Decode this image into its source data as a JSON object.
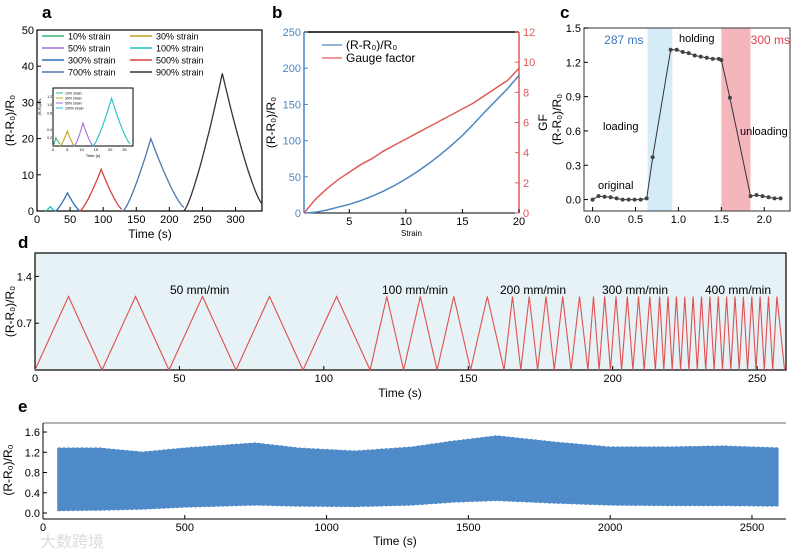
{
  "watermark": "大数跨境",
  "chart_data": [
    {
      "panel": "a",
      "type": "line",
      "xlabel": "Time (s)",
      "ylabel": "(R-R₀)/R₀",
      "xlim": [
        0,
        340
      ],
      "ylim": [
        0,
        50
      ],
      "xticks": [
        "0",
        "50",
        "100",
        "150",
        "200",
        "250",
        "300"
      ],
      "yticks": [
        "0",
        "10",
        "20",
        "30",
        "40",
        "50"
      ],
      "series": [
        {
          "name": "10% strain",
          "color": "#3cb371",
          "start": 0,
          "peak_t": 10,
          "end": 15,
          "peak": 0.3,
          "end_val": 0
        },
        {
          "name": "30% strain",
          "color": "#c9a020",
          "start": 3,
          "peak_t": 9,
          "end": 14,
          "peak": 0.5,
          "end_val": 0
        },
        {
          "name": "50% strain",
          "color": "#a86fd6",
          "start": 5,
          "peak_t": 10,
          "end": 15,
          "peak": 0.6,
          "end_val": 0
        },
        {
          "name": "100% strain",
          "color": "#20c0c0",
          "start": 13,
          "peak_t": 20,
          "end": 28,
          "peak": 1.2,
          "end_val": 0
        },
        {
          "name": "300% strain",
          "color": "#2f6db3",
          "start": 28,
          "peak_t": 46,
          "end": 65,
          "peak": 5,
          "end_val": 0
        },
        {
          "name": "500% strain",
          "color": "#d94040",
          "start": 65,
          "peak_t": 97,
          "end": 128,
          "peak": 11.5,
          "end_val": 0.5
        },
        {
          "name": "700% strain",
          "color": "#4a78a8",
          "start": 130,
          "peak_t": 172,
          "end": 222,
          "peak": 20,
          "end_val": 1
        },
        {
          "name": "900% strain",
          "color": "#333333",
          "start": 222,
          "peak_t": 280,
          "end": 340,
          "peak": 38,
          "end_val": 2
        }
      ],
      "inset": {
        "xlabel": "Time (s)",
        "ylabel": "(R-R₀)/R₀",
        "xlim": [
          0,
          28
        ],
        "ylim": [
          0,
          1.4
        ],
        "xticks": [
          "0",
          "5",
          "10",
          "15",
          "20",
          "25"
        ],
        "yticks": [
          "0.2",
          "0.4",
          "0.8",
          "1.0",
          "1.2"
        ],
        "series": [
          {
            "name": "10% strain",
            "color": "#3cb371",
            "start": 0,
            "peak_t": 1,
            "end": 2.5,
            "peak": 0.2,
            "end_val": 0.05
          },
          {
            "name": "30% strain",
            "color": "#c9a020",
            "start": 2.5,
            "peak_t": 5,
            "end": 7.5,
            "peak": 0.36,
            "end_val": 0
          },
          {
            "name": "50% strain",
            "color": "#a86fd6",
            "start": 7.5,
            "peak_t": 10.5,
            "end": 14,
            "peak": 0.55,
            "end_val": 0
          },
          {
            "name": "100% strain",
            "color": "#20c0c0",
            "start": 14,
            "peak_t": 20.5,
            "end": 27,
            "peak": 1.15,
            "end_val": 0.05
          }
        ]
      }
    },
    {
      "panel": "b",
      "type": "line",
      "xlabel": "Strain",
      "ylabel": "(R-R₀)/R₀",
      "ylabel_right": "GF",
      "xlim": [
        1,
        20
      ],
      "ylim": [
        0,
        250
      ],
      "ylim_right": [
        0,
        12
      ],
      "xticks": [
        "5",
        "10",
        "15",
        "20"
      ],
      "yticks": [
        "0",
        "50",
        "100",
        "150",
        "200",
        "250"
      ],
      "yticks_right": [
        "0",
        "2",
        "4",
        "6",
        "8",
        "10",
        "12"
      ],
      "left_color": "#4a86c0",
      "right_color": "#e05a5a",
      "series": [
        {
          "name": "(R-R₀)/R₀",
          "axis": "left",
          "color": "#4a86c0",
          "x": [
            1,
            2,
            3,
            4,
            5,
            6,
            7,
            8,
            9,
            10,
            11,
            12,
            13,
            14,
            15,
            16,
            17,
            18,
            19,
            20
          ],
          "y": [
            0,
            1,
            4,
            8,
            12,
            17,
            23,
            30,
            38,
            47,
            57,
            68,
            80,
            93,
            107,
            123,
            140,
            156,
            172,
            190
          ]
        },
        {
          "name": "Gauge factor",
          "axis": "right",
          "color": "#e05a5a",
          "x": [
            1,
            2,
            3,
            4,
            5,
            6,
            7,
            8,
            9,
            10,
            11,
            12,
            13,
            14,
            15,
            16,
            17,
            18,
            19,
            20
          ],
          "y": [
            0,
            0.9,
            1.6,
            2.2,
            2.7,
            3.2,
            3.6,
            4.1,
            4.5,
            4.9,
            5.3,
            5.7,
            6.1,
            6.5,
            6.9,
            7.3,
            7.8,
            8.3,
            8.8,
            9.6
          ]
        }
      ]
    },
    {
      "panel": "c",
      "type": "line",
      "ylabel": "(R-R₀)/R₀",
      "xlim": [
        -0.1,
        2.3
      ],
      "ylim": [
        -0.1,
        1.5
      ],
      "xticks": [
        "0.0",
        "0.5",
        "1.0",
        "1.5",
        "2.0"
      ],
      "yticks": [
        "0.0",
        "0.3",
        "0.6",
        "0.9",
        "1.2",
        "1.5"
      ],
      "bands": [
        {
          "from": 0.64,
          "to": 0.93,
          "color": "#d3ecf8",
          "label": "287 ms",
          "label_color": "#3a78b8"
        },
        {
          "from": 1.5,
          "to": 1.84,
          "color": "#f5b5bd",
          "label": "300 ms",
          "label_color": "#e04050"
        }
      ],
      "annotations": [
        "original",
        "loading",
        "holding",
        "unloading"
      ],
      "x": [
        0,
        0.07,
        0.14,
        0.21,
        0.28,
        0.35,
        0.42,
        0.49,
        0.56,
        0.63,
        0.7,
        0.91,
        0.98,
        1.05,
        1.12,
        1.19,
        1.26,
        1.33,
        1.4,
        1.47,
        1.5,
        1.6,
        1.84,
        1.91,
        1.98,
        2.05,
        2.12,
        2.19
      ],
      "y": [
        0,
        0.03,
        0.025,
        0.02,
        0.01,
        0,
        0,
        0,
        0,
        0.01,
        0.37,
        1.31,
        1.31,
        1.29,
        1.28,
        1.26,
        1.25,
        1.24,
        1.23,
        1.23,
        1.22,
        0.89,
        0.03,
        0.04,
        0.03,
        0.02,
        0.01,
        0.01
      ]
    },
    {
      "panel": "d",
      "type": "line",
      "xlabel": "Time (s)",
      "ylabel": "(R-R₀)/R₀",
      "xlim": [
        0,
        260
      ],
      "ylim": [
        0,
        1.75
      ],
      "xticks": [
        "0",
        "50",
        "100",
        "150",
        "200",
        "250"
      ],
      "yticks": [
        "0.7",
        "1.4"
      ],
      "color": "#e05050",
      "peak": 1.1,
      "segments": [
        {
          "label": "50 mm/min",
          "start": 0,
          "period": 23.2,
          "cycles": 5
        },
        {
          "label": "100 mm/min",
          "start": 116,
          "period": 11.6,
          "cycles": 4
        },
        {
          "label": "200 mm/min",
          "start": 162.4,
          "period": 5.8,
          "cycles": 5
        },
        {
          "label": "300 mm/min",
          "start": 191.4,
          "period": 3.9,
          "cycles": 6
        },
        {
          "label": "400 mm/min",
          "start": 214.8,
          "period": 2.9,
          "cycles": 15
        }
      ]
    },
    {
      "panel": "e",
      "type": "area",
      "xlabel": "Time (s)",
      "ylabel": "(R-R₀)/R₀",
      "xlim": [
        0,
        2620
      ],
      "ylim": [
        0,
        1.65
      ],
      "xticks": [
        "0",
        "500",
        "1000",
        "1500",
        "2000",
        "2500"
      ],
      "yticks": [
        "0.0",
        "0.4",
        "0.8",
        "1.2",
        "1.6"
      ],
      "color": "#4f8bc9",
      "t": [
        50,
        200,
        350,
        500,
        750,
        900,
        1100,
        1300,
        1450,
        1600,
        1800,
        2000,
        2200,
        2400,
        2600
      ],
      "upper": [
        1.28,
        1.28,
        1.2,
        1.28,
        1.38,
        1.28,
        1.22,
        1.3,
        1.42,
        1.52,
        1.4,
        1.3,
        1.3,
        1.32,
        1.28
      ],
      "lower": [
        0.05,
        0.06,
        0.08,
        0.12,
        0.16,
        0.14,
        0.13,
        0.16,
        0.22,
        0.25,
        0.2,
        0.16,
        0.15,
        0.15,
        0.14
      ]
    }
  ]
}
